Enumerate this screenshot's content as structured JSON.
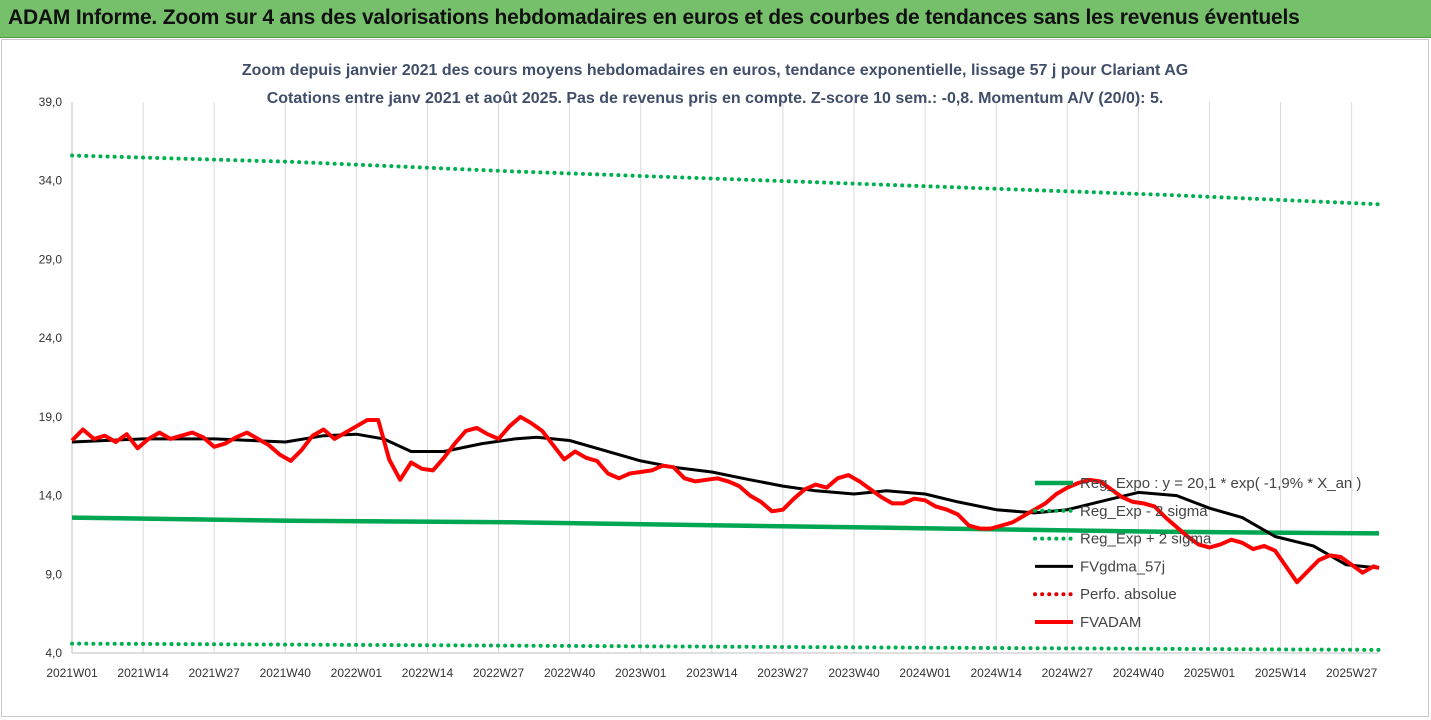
{
  "banner": {
    "title": "ADAM Informe. Zoom sur 4 ans des valorisations hebdomadaires en euros et des courbes de tendances sans les revenus éventuels"
  },
  "colors": {
    "banner_bg": "#77c06b",
    "trend_green": "#00a651",
    "sigma_green": "#00b050",
    "moving_average": "#000000",
    "price_red": "#ff0000",
    "perf_red": "#e00000",
    "title_text": "#404e6a"
  },
  "chart_data": {
    "type": "line",
    "title": "Zoom depuis janvier 2021 des cours moyens hebdomadaires en euros, tendance exponentielle, lissage 57 j pour Clariant AG",
    "subtitle": "Cotations entre janv 2021 et août 2025.  Pas de revenus pris en compte. Z-score 10 sem.: -0,8. Momentum A/V (20/0): 5.",
    "xlabel": "",
    "ylabel": "",
    "ylim": [
      4.0,
      39.0
    ],
    "y_ticks": [
      "4,0",
      "9,0",
      "14,0",
      "19,0",
      "24,0",
      "29,0",
      "34,0",
      "39,0"
    ],
    "x_ticks": [
      "2021W01",
      "2021W14",
      "2021W27",
      "2021W40",
      "2022W01",
      "2022W14",
      "2022W27",
      "2022W40",
      "2023W01",
      "2023W14",
      "2023W27",
      "2023W40",
      "2024W01",
      "2024W14",
      "2024W27",
      "2024W40",
      "2025W01",
      "2025W14",
      "2025W27"
    ],
    "weeks_total": 240,
    "grid": "vertical",
    "legend_position": "right",
    "series": [
      {
        "name": "Reg_Expo : y = 20,1 * exp( -1,9% *  X_an )",
        "style": "solid-thick",
        "color": "#00a651",
        "points": [
          [
            0,
            12.6
          ],
          [
            40,
            12.4
          ],
          [
            80,
            12.3
          ],
          [
            120,
            12.1
          ],
          [
            160,
            11.9
          ],
          [
            200,
            11.7
          ],
          [
            239,
            11.6
          ]
        ]
      },
      {
        "name": "Reg_Exp - 2 sigma",
        "style": "dotted",
        "color": "#00b050",
        "points": [
          [
            0,
            4.6
          ],
          [
            60,
            4.5
          ],
          [
            120,
            4.4
          ],
          [
            180,
            4.3
          ],
          [
            239,
            4.2
          ]
        ]
      },
      {
        "name": "Reg_Exp + 2 sigma",
        "style": "dotted",
        "color": "#00b050",
        "points": [
          [
            0,
            35.6
          ],
          [
            40,
            35.2
          ],
          [
            80,
            34.6
          ],
          [
            120,
            34.1
          ],
          [
            160,
            33.6
          ],
          [
            200,
            33.1
          ],
          [
            239,
            32.5
          ]
        ]
      },
      {
        "name": "FVgdma_57j",
        "style": "solid",
        "color": "#000000",
        "points": [
          [
            0,
            17.4
          ],
          [
            13,
            17.6
          ],
          [
            26,
            17.6
          ],
          [
            39,
            17.4
          ],
          [
            46,
            17.8
          ],
          [
            52,
            17.9
          ],
          [
            57,
            17.6
          ],
          [
            62,
            16.8
          ],
          [
            68,
            16.8
          ],
          [
            75,
            17.3
          ],
          [
            81,
            17.6
          ],
          [
            85,
            17.7
          ],
          [
            91,
            17.5
          ],
          [
            97,
            16.9
          ],
          [
            104,
            16.2
          ],
          [
            110,
            15.8
          ],
          [
            117,
            15.5
          ],
          [
            124,
            15.0
          ],
          [
            130,
            14.6
          ],
          [
            136,
            14.3
          ],
          [
            143,
            14.1
          ],
          [
            149,
            14.3
          ],
          [
            156,
            14.1
          ],
          [
            162,
            13.6
          ],
          [
            169,
            13.1
          ],
          [
            176,
            12.9
          ],
          [
            182,
            13.1
          ],
          [
            189,
            13.7
          ],
          [
            195,
            14.2
          ],
          [
            202,
            14.0
          ],
          [
            208,
            13.2
          ],
          [
            214,
            12.6
          ],
          [
            220,
            11.4
          ],
          [
            227,
            10.8
          ],
          [
            233,
            9.6
          ],
          [
            239,
            9.4
          ]
        ]
      },
      {
        "name": "Perfo. absolue",
        "style": "dotted",
        "color": "#e00000",
        "points": []
      },
      {
        "name": "FVADAM",
        "style": "solid-thick",
        "color": "#ff0000",
        "points": [
          [
            0,
            17.5
          ],
          [
            2,
            18.2
          ],
          [
            4,
            17.6
          ],
          [
            6,
            17.8
          ],
          [
            8,
            17.4
          ],
          [
            10,
            17.9
          ],
          [
            12,
            17.0
          ],
          [
            14,
            17.6
          ],
          [
            16,
            18.0
          ],
          [
            18,
            17.6
          ],
          [
            20,
            17.8
          ],
          [
            22,
            18.0
          ],
          [
            24,
            17.7
          ],
          [
            26,
            17.1
          ],
          [
            28,
            17.3
          ],
          [
            30,
            17.7
          ],
          [
            32,
            18.0
          ],
          [
            34,
            17.6
          ],
          [
            36,
            17.2
          ],
          [
            38,
            16.6
          ],
          [
            40,
            16.2
          ],
          [
            42,
            16.9
          ],
          [
            44,
            17.8
          ],
          [
            46,
            18.2
          ],
          [
            48,
            17.6
          ],
          [
            50,
            18.0
          ],
          [
            52,
            18.4
          ],
          [
            54,
            18.8
          ],
          [
            56,
            18.8
          ],
          [
            58,
            16.3
          ],
          [
            60,
            15.0
          ],
          [
            62,
            16.1
          ],
          [
            64,
            15.7
          ],
          [
            66,
            15.6
          ],
          [
            68,
            16.4
          ],
          [
            70,
            17.3
          ],
          [
            72,
            18.1
          ],
          [
            74,
            18.3
          ],
          [
            76,
            17.9
          ],
          [
            78,
            17.6
          ],
          [
            80,
            18.4
          ],
          [
            82,
            19.0
          ],
          [
            84,
            18.6
          ],
          [
            86,
            18.1
          ],
          [
            88,
            17.2
          ],
          [
            90,
            16.3
          ],
          [
            92,
            16.8
          ],
          [
            94,
            16.4
          ],
          [
            96,
            16.2
          ],
          [
            98,
            15.4
          ],
          [
            100,
            15.1
          ],
          [
            102,
            15.4
          ],
          [
            104,
            15.5
          ],
          [
            106,
            15.6
          ],
          [
            108,
            15.9
          ],
          [
            110,
            15.8
          ],
          [
            112,
            15.1
          ],
          [
            114,
            14.9
          ],
          [
            116,
            15.0
          ],
          [
            118,
            15.1
          ],
          [
            120,
            14.9
          ],
          [
            122,
            14.6
          ],
          [
            124,
            14.0
          ],
          [
            126,
            13.6
          ],
          [
            128,
            13.0
          ],
          [
            130,
            13.1
          ],
          [
            132,
            13.8
          ],
          [
            134,
            14.4
          ],
          [
            136,
            14.7
          ],
          [
            138,
            14.5
          ],
          [
            140,
            15.1
          ],
          [
            142,
            15.3
          ],
          [
            144,
            14.9
          ],
          [
            146,
            14.4
          ],
          [
            148,
            13.9
          ],
          [
            150,
            13.5
          ],
          [
            152,
            13.5
          ],
          [
            154,
            13.8
          ],
          [
            156,
            13.7
          ],
          [
            158,
            13.3
          ],
          [
            160,
            13.1
          ],
          [
            162,
            12.8
          ],
          [
            164,
            12.1
          ],
          [
            166,
            11.9
          ],
          [
            168,
            11.9
          ],
          [
            170,
            12.1
          ],
          [
            172,
            12.3
          ],
          [
            174,
            12.7
          ],
          [
            176,
            13.1
          ],
          [
            178,
            13.5
          ],
          [
            180,
            14.1
          ],
          [
            182,
            14.5
          ],
          [
            184,
            14.8
          ],
          [
            186,
            15.0
          ],
          [
            188,
            14.9
          ],
          [
            190,
            14.4
          ],
          [
            192,
            13.9
          ],
          [
            194,
            13.6
          ],
          [
            196,
            13.5
          ],
          [
            198,
            13.3
          ],
          [
            200,
            12.6
          ],
          [
            202,
            12.0
          ],
          [
            204,
            11.4
          ],
          [
            206,
            10.9
          ],
          [
            208,
            10.7
          ],
          [
            210,
            10.9
          ],
          [
            212,
            11.2
          ],
          [
            214,
            11.0
          ],
          [
            216,
            10.6
          ],
          [
            218,
            10.8
          ],
          [
            220,
            10.5
          ],
          [
            222,
            9.5
          ],
          [
            224,
            8.5
          ],
          [
            226,
            9.2
          ],
          [
            228,
            9.9
          ],
          [
            230,
            10.2
          ],
          [
            232,
            10.1
          ],
          [
            234,
            9.6
          ],
          [
            236,
            9.1
          ],
          [
            238,
            9.5
          ],
          [
            239,
            9.4
          ]
        ]
      }
    ]
  }
}
